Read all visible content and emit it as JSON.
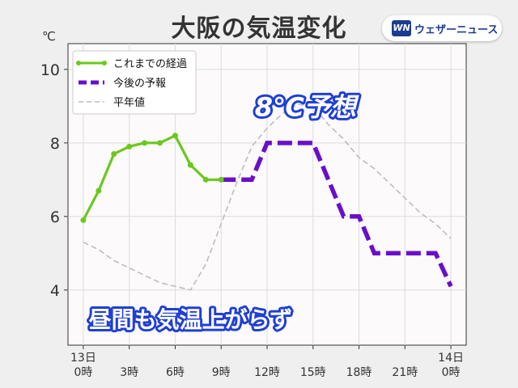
{
  "header": {
    "title": "大阪の気温変化",
    "logo_mark": "WN",
    "logo_text": "ウェザーニュース"
  },
  "chart_data": {
    "type": "line",
    "title": "大阪の気温変化",
    "ylabel": "℃",
    "ylim": [
      2.5,
      10.7
    ],
    "xlim": [
      -1,
      25
    ],
    "yticks": [
      4,
      6,
      8,
      10
    ],
    "xticks": [
      {
        "x": 0,
        "line1": "13日",
        "line2": "0時"
      },
      {
        "x": 3,
        "line1": "",
        "line2": "3時"
      },
      {
        "x": 6,
        "line1": "",
        "line2": "6時"
      },
      {
        "x": 9,
        "line1": "",
        "line2": "9時"
      },
      {
        "x": 12,
        "line1": "",
        "line2": "12時"
      },
      {
        "x": 15,
        "line1": "",
        "line2": "15時"
      },
      {
        "x": 18,
        "line1": "",
        "line2": "18時"
      },
      {
        "x": 21,
        "line1": "",
        "line2": "21時"
      },
      {
        "x": 24,
        "line1": "14日",
        "line2": "0時"
      }
    ],
    "grid": true,
    "legend_position": "top-left",
    "series": [
      {
        "name": "これまでの経過",
        "color": "#6ac81e",
        "style": "solid-markers",
        "points": [
          [
            0,
            5.9
          ],
          [
            1,
            6.7
          ],
          [
            2,
            7.7
          ],
          [
            3,
            7.9
          ],
          [
            4,
            8.0
          ],
          [
            5,
            8.0
          ],
          [
            6,
            8.2
          ],
          [
            7,
            7.4
          ],
          [
            8,
            7.0
          ],
          [
            9,
            7.0
          ]
        ]
      },
      {
        "name": "今後の予報",
        "color": "#6a0fc9",
        "style": "dashed-thick",
        "points": [
          [
            9,
            7.0
          ],
          [
            11,
            7.0
          ],
          [
            12,
            8.0
          ],
          [
            15,
            8.0
          ],
          [
            17,
            6.0
          ],
          [
            18,
            6.0
          ],
          [
            19,
            5.0
          ],
          [
            23,
            5.0
          ],
          [
            24,
            4.1
          ]
        ]
      },
      {
        "name": "平年値",
        "color": "#bdbdbd",
        "style": "dashed-thin",
        "points": [
          [
            0,
            5.3
          ],
          [
            1,
            5.1
          ],
          [
            2,
            4.8
          ],
          [
            3,
            4.6
          ],
          [
            4,
            4.4
          ],
          [
            5,
            4.2
          ],
          [
            6,
            4.1
          ],
          [
            7,
            4.0
          ],
          [
            8,
            4.7
          ],
          [
            9,
            5.8
          ],
          [
            10,
            6.9
          ],
          [
            11,
            7.9
          ],
          [
            12,
            8.4
          ],
          [
            13,
            8.8
          ],
          [
            14,
            9.05
          ],
          [
            15,
            9.0
          ],
          [
            16,
            8.5
          ],
          [
            17,
            8.1
          ],
          [
            18,
            7.6
          ],
          [
            19,
            7.3
          ],
          [
            20,
            6.9
          ],
          [
            21,
            6.5
          ],
          [
            22,
            6.1
          ],
          [
            23,
            5.8
          ],
          [
            24,
            5.4
          ]
        ]
      }
    ],
    "annotations": [
      {
        "text": "8℃予想",
        "x": 14.5,
        "y": 9.0
      },
      {
        "text": "昼間も気温上がらず",
        "x": 7.0,
        "y": 3.2
      }
    ]
  }
}
